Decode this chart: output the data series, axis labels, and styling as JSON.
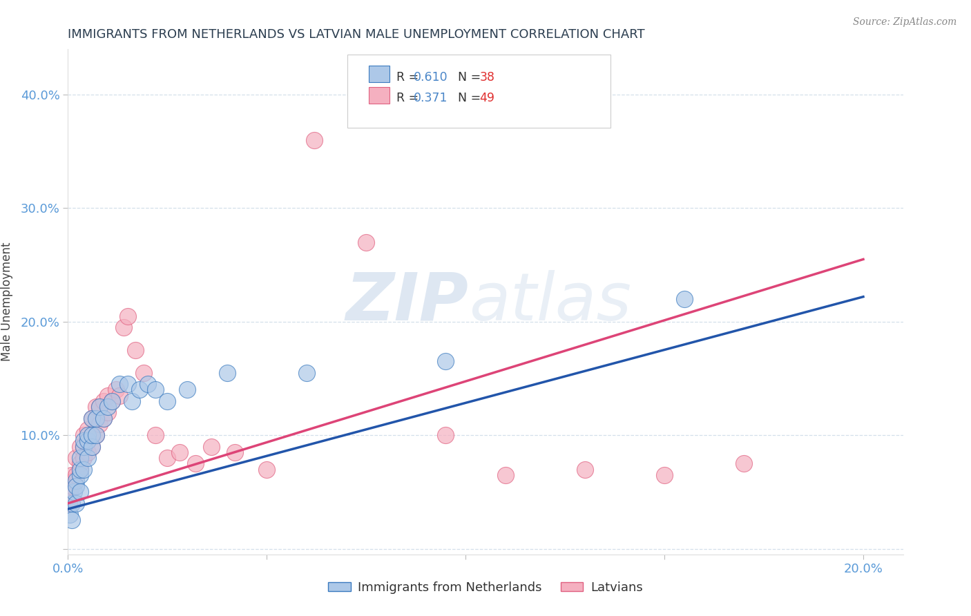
{
  "title": "IMMIGRANTS FROM NETHERLANDS VS LATVIAN MALE UNEMPLOYMENT CORRELATION CHART",
  "source": "Source: ZipAtlas.com",
  "ylabel": "Male Unemployment",
  "xlim": [
    0.0,
    0.21
  ],
  "ylim": [
    -0.005,
    0.44
  ],
  "yticks": [
    0.0,
    0.1,
    0.2,
    0.3,
    0.4
  ],
  "ytick_labels": [
    "",
    "10.0%",
    "20.0%",
    "30.0%",
    "40.0%"
  ],
  "series1_name": "Immigrants from Netherlands",
  "series1_R": "0.610",
  "series1_N": "38",
  "series1_color": "#adc8e8",
  "series1_edge_color": "#3a7abf",
  "series2_name": "Latvians",
  "series2_R": "0.371",
  "series2_N": "49",
  "series2_color": "#f5b0c0",
  "series2_edge_color": "#e06080",
  "watermark_zip": "ZIP",
  "watermark_atlas": "atlas",
  "background_color": "#ffffff",
  "grid_color": "#d0dce8",
  "title_color": "#2c3e50",
  "axis_tick_color": "#5a9ad8",
  "ylabel_color": "#444444",
  "R_color": "#4a86c8",
  "N_color": "#e03030",
  "trend1_color": "#2255aa",
  "trend2_color": "#dd4477",
  "series1_x": [
    0.0005,
    0.001,
    0.001,
    0.0015,
    0.002,
    0.002,
    0.002,
    0.003,
    0.003,
    0.003,
    0.003,
    0.004,
    0.004,
    0.004,
    0.005,
    0.005,
    0.005,
    0.006,
    0.006,
    0.006,
    0.007,
    0.007,
    0.008,
    0.009,
    0.01,
    0.011,
    0.013,
    0.015,
    0.016,
    0.018,
    0.02,
    0.022,
    0.025,
    0.03,
    0.04,
    0.06,
    0.095,
    0.155
  ],
  "series1_y": [
    0.03,
    0.025,
    0.04,
    0.05,
    0.04,
    0.06,
    0.055,
    0.05,
    0.065,
    0.07,
    0.08,
    0.07,
    0.09,
    0.095,
    0.08,
    0.095,
    0.1,
    0.09,
    0.1,
    0.115,
    0.1,
    0.115,
    0.125,
    0.115,
    0.125,
    0.13,
    0.145,
    0.145,
    0.13,
    0.14,
    0.145,
    0.14,
    0.13,
    0.14,
    0.155,
    0.155,
    0.165,
    0.22
  ],
  "series2_x": [
    0.0003,
    0.0005,
    0.001,
    0.001,
    0.0015,
    0.002,
    0.002,
    0.003,
    0.003,
    0.003,
    0.004,
    0.004,
    0.004,
    0.005,
    0.005,
    0.005,
    0.006,
    0.006,
    0.006,
    0.007,
    0.007,
    0.007,
    0.008,
    0.008,
    0.009,
    0.009,
    0.01,
    0.01,
    0.011,
    0.012,
    0.013,
    0.014,
    0.015,
    0.017,
    0.019,
    0.022,
    0.025,
    0.028,
    0.032,
    0.036,
    0.042,
    0.05,
    0.062,
    0.075,
    0.095,
    0.11,
    0.13,
    0.15,
    0.17
  ],
  "series2_y": [
    0.04,
    0.05,
    0.055,
    0.065,
    0.06,
    0.065,
    0.08,
    0.07,
    0.075,
    0.09,
    0.08,
    0.09,
    0.1,
    0.085,
    0.095,
    0.105,
    0.09,
    0.1,
    0.115,
    0.1,
    0.115,
    0.125,
    0.11,
    0.125,
    0.115,
    0.13,
    0.12,
    0.135,
    0.13,
    0.14,
    0.135,
    0.195,
    0.205,
    0.175,
    0.155,
    0.1,
    0.08,
    0.085,
    0.075,
    0.09,
    0.085,
    0.07,
    0.36,
    0.27,
    0.1,
    0.065,
    0.07,
    0.065,
    0.075
  ],
  "trend1_x0": 0.0,
  "trend1_x1": 0.2,
  "trend1_y0": 0.035,
  "trend1_y1": 0.222,
  "trend2_x0": 0.0,
  "trend2_x1": 0.2,
  "trend2_y0": 0.04,
  "trend2_y1": 0.255
}
